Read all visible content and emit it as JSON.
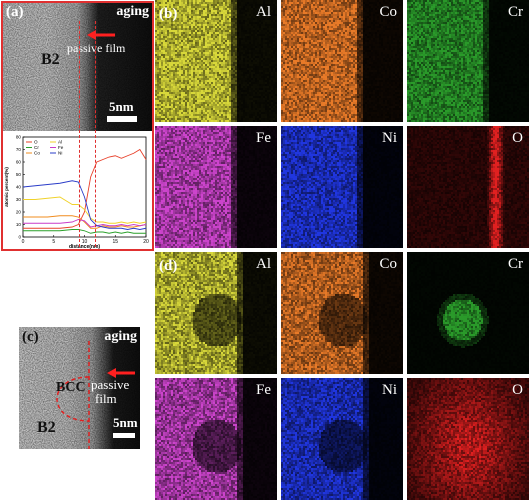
{
  "panel_a": {
    "label": "(a)",
    "aging": "aging",
    "phase": "B2",
    "passive_label": "passive film",
    "scale_label": "5nm",
    "chart_data": {
      "type": "line",
      "xlabel": "distance(nm)",
      "ylabel": "atomic percent(%)",
      "xlim": [
        0,
        20
      ],
      "ylim": [
        0,
        80
      ],
      "xticks": [
        "0",
        "5",
        "10",
        "15",
        "20"
      ],
      "yticks": [
        "0",
        "10",
        "20",
        "30",
        "40",
        "50",
        "60",
        "70",
        "80"
      ],
      "legend_placement": "top-left",
      "series": [
        {
          "name": "O",
          "color": "#e8402a",
          "x": [
            0,
            2,
            4,
            6,
            8,
            9,
            10,
            11,
            12,
            13,
            14,
            15,
            16,
            17,
            18,
            19,
            20
          ],
          "values": [
            7,
            7,
            7,
            7,
            8,
            10,
            20,
            48,
            60,
            62,
            64,
            65,
            63,
            65,
            67,
            70,
            62
          ]
        },
        {
          "name": "Cr",
          "color": "#2aa02a",
          "x": [
            0,
            2,
            4,
            6,
            8,
            9,
            10,
            11,
            12,
            13,
            14,
            15,
            16,
            17,
            18,
            19,
            20
          ],
          "values": [
            5,
            5,
            5,
            5,
            6,
            6,
            5,
            3,
            4,
            4,
            3,
            4,
            3,
            4,
            3,
            3,
            3
          ]
        },
        {
          "name": "Co",
          "color": "#f08c1e",
          "x": [
            0,
            2,
            4,
            6,
            8,
            9,
            10,
            11,
            12,
            13,
            14,
            15,
            16,
            17,
            18,
            19,
            20
          ],
          "values": [
            16,
            16,
            16,
            17,
            17,
            16,
            12,
            7,
            7,
            9,
            8,
            8,
            9,
            8,
            8,
            9,
            10
          ]
        },
        {
          "name": "Al",
          "color": "#f0d22a",
          "x": [
            0,
            2,
            4,
            6,
            8,
            9,
            10,
            11,
            12,
            13,
            14,
            15,
            16,
            17,
            18,
            19,
            20
          ],
          "values": [
            30,
            30,
            31,
            32,
            26,
            26,
            22,
            15,
            12,
            12,
            11,
            11,
            12,
            11,
            12,
            11,
            12
          ]
        },
        {
          "name": "Fe",
          "color": "#c83cc8",
          "x": [
            0,
            2,
            4,
            6,
            8,
            9,
            10,
            11,
            12,
            13,
            14,
            15,
            16,
            17,
            18,
            19,
            20
          ],
          "values": [
            11,
            11,
            11,
            11,
            12,
            14,
            13,
            8,
            9,
            10,
            9,
            9,
            10,
            9,
            10,
            9,
            10
          ]
        },
        {
          "name": "Ni",
          "color": "#2a3cc8",
          "x": [
            0,
            2,
            4,
            6,
            8,
            9,
            10,
            11,
            12,
            13,
            14,
            15,
            16,
            17,
            18,
            19,
            20
          ],
          "values": [
            40,
            41,
            42,
            43,
            45,
            44,
            32,
            14,
            9,
            8,
            7,
            7,
            7,
            6,
            7,
            6,
            7
          ]
        }
      ]
    }
  },
  "panel_b": {
    "label": "(b)",
    "tiles": [
      {
        "name": "Al",
        "color": "#d8d83a"
      },
      {
        "name": "Co",
        "color": "#e87a28"
      },
      {
        "name": "Cr",
        "color": "#2a9a2a"
      },
      {
        "name": "Fe",
        "color": "#cc44cc"
      },
      {
        "name": "Ni",
        "color": "#2036e0"
      },
      {
        "name": "O",
        "color": "#e02020"
      }
    ]
  },
  "panel_c": {
    "label": "(c)",
    "aging": "aging",
    "phase_bcc": "BCC",
    "phase_b2": "B2",
    "passive_label_1": "passive",
    "passive_label_2": "film",
    "scale_label": "5nm"
  },
  "panel_d": {
    "label": "(d)",
    "tiles": [
      {
        "name": "Al",
        "color": "#d8d83a"
      },
      {
        "name": "Co",
        "color": "#e87a28"
      },
      {
        "name": "Cr",
        "color": "#2a9a2a"
      },
      {
        "name": "Fe",
        "color": "#cc44cc"
      },
      {
        "name": "Ni",
        "color": "#2036e0"
      },
      {
        "name": "O",
        "color": "#e02020"
      }
    ]
  }
}
